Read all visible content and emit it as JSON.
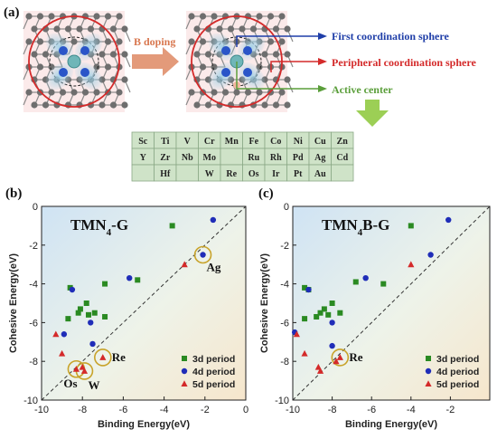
{
  "panel_a": {
    "label": "(a)",
    "arrow_label": "B doping",
    "callouts": {
      "first": "First coordination sphere",
      "peripheral": "Peripheral coordination sphere",
      "active": "Active center"
    },
    "colors": {
      "first": "#1f3ea8",
      "peripheral": "#d42a2a",
      "active": "#5a9e3a",
      "arrow": "#e39a7a"
    },
    "periodic_rows": [
      [
        "Sc",
        "Ti",
        "V",
        "Cr",
        "Mn",
        "Fe",
        "Co",
        "Ni",
        "Cu",
        "Zn"
      ],
      [
        "Y",
        "Zr",
        "Nb",
        "Mo",
        "",
        "Ru",
        "Rh",
        "Pd",
        "Ag",
        "Cd"
      ],
      [
        "",
        "Hf",
        "",
        "W",
        "Re",
        "Os",
        "Ir",
        "Pt",
        "Au",
        ""
      ]
    ]
  },
  "chart_data": [
    {
      "id": "b",
      "type": "scatter",
      "panel_label": "(b)",
      "title": "TMN4-G",
      "xlabel": "Binding Energy(eV)",
      "ylabel": "Cohesive Energy(eV)",
      "xlim": [
        -10,
        0
      ],
      "ylim": [
        -10,
        0
      ],
      "xticks": [
        "-10",
        "-8",
        "-6",
        "-4",
        "-2",
        "0"
      ],
      "yticks": [
        "0",
        "-2",
        "-4",
        "-6",
        "-8",
        "-10"
      ],
      "legend_placement": "bottom-right",
      "series": [
        {
          "name": "3d period",
          "marker": "square",
          "color": "#2a8a22",
          "points": [
            [
              -8.6,
              -4.2
            ],
            [
              -8.2,
              -5.5
            ],
            [
              -8.1,
              -5.3
            ],
            [
              -7.8,
              -5.0
            ],
            [
              -7.7,
              -5.6
            ],
            [
              -7.4,
              -5.5
            ],
            [
              -6.9,
              -4.0
            ],
            [
              -6.9,
              -5.7
            ],
            [
              -5.3,
              -3.8
            ],
            [
              -3.6,
              -1.0
            ],
            [
              -8.7,
              -5.8
            ]
          ]
        },
        {
          "name": "4d period",
          "marker": "circle",
          "color": "#1f2db8",
          "points": [
            [
              -8.5,
              -4.3
            ],
            [
              -8.9,
              -6.6
            ],
            [
              -7.6,
              -6.0
            ],
            [
              -7.5,
              -7.1
            ],
            [
              -5.7,
              -3.7
            ],
            [
              -2.1,
              -2.5
            ],
            [
              -1.6,
              -0.7
            ]
          ]
        },
        {
          "name": "5d period",
          "marker": "triangle",
          "color": "#d42a2a",
          "points": [
            [
              -9.3,
              -6.6
            ],
            [
              -9.0,
              -7.6
            ],
            [
              -8.3,
              -8.4
            ],
            [
              -8.0,
              -8.3
            ],
            [
              -7.9,
              -8.5
            ],
            [
              -7.0,
              -7.8
            ],
            [
              -3.0,
              -3.0
            ]
          ]
        }
      ],
      "annotations": [
        {
          "text": "Ag",
          "x": -2.1,
          "y": -2.5
        },
        {
          "text": "Re",
          "x": -7.0,
          "y": -7.8
        },
        {
          "text": "Os",
          "x": -8.3,
          "y": -8.4
        },
        {
          "text": "W",
          "x": -7.9,
          "y": -8.5
        }
      ]
    },
    {
      "id": "c",
      "type": "scatter",
      "panel_label": "(c)",
      "title": "TMN4B-G",
      "xlabel": "Binding Energy(eV)",
      "ylabel": "Cohesive Energy(eV)",
      "xlim": [
        -10,
        0
      ],
      "ylim": [
        -10,
        0
      ],
      "xticks": [
        "-10",
        "-8",
        "-6",
        "-4",
        "-2"
      ],
      "yticks": [
        "0",
        "-2",
        "-4",
        "-6",
        "-8",
        "-10"
      ],
      "legend_placement": "bottom-right",
      "series": [
        {
          "name": "3d period",
          "marker": "square",
          "color": "#2a8a22",
          "points": [
            [
              -9.4,
              -4.2
            ],
            [
              -9.2,
              -4.3
            ],
            [
              -8.4,
              -5.3
            ],
            [
              -8.6,
              -5.5
            ],
            [
              -8.2,
              -5.6
            ],
            [
              -8.0,
              -5.0
            ],
            [
              -7.6,
              -5.5
            ],
            [
              -9.4,
              -5.8
            ],
            [
              -6.8,
              -3.9
            ],
            [
              -5.4,
              -4.0
            ],
            [
              -4.0,
              -1.0
            ],
            [
              -8.8,
              -5.7
            ]
          ]
        },
        {
          "name": "4d period",
          "marker": "circle",
          "color": "#1f2db8",
          "points": [
            [
              -9.2,
              -4.3
            ],
            [
              -9.9,
              -6.5
            ],
            [
              -8.0,
              -6.0
            ],
            [
              -8.0,
              -7.2
            ],
            [
              -6.3,
              -3.7
            ],
            [
              -3.0,
              -2.5
            ],
            [
              -2.1,
              -0.7
            ]
          ]
        },
        {
          "name": "5d period",
          "marker": "triangle",
          "color": "#d42a2a",
          "points": [
            [
              -9.8,
              -6.6
            ],
            [
              -9.4,
              -7.6
            ],
            [
              -8.7,
              -8.3
            ],
            [
              -8.6,
              -8.5
            ],
            [
              -7.8,
              -8.0
            ],
            [
              -7.6,
              -7.8
            ],
            [
              -4.0,
              -3.0
            ]
          ]
        }
      ],
      "annotations": [
        {
          "text": "Re",
          "x": -7.6,
          "y": -7.8
        }
      ]
    }
  ]
}
